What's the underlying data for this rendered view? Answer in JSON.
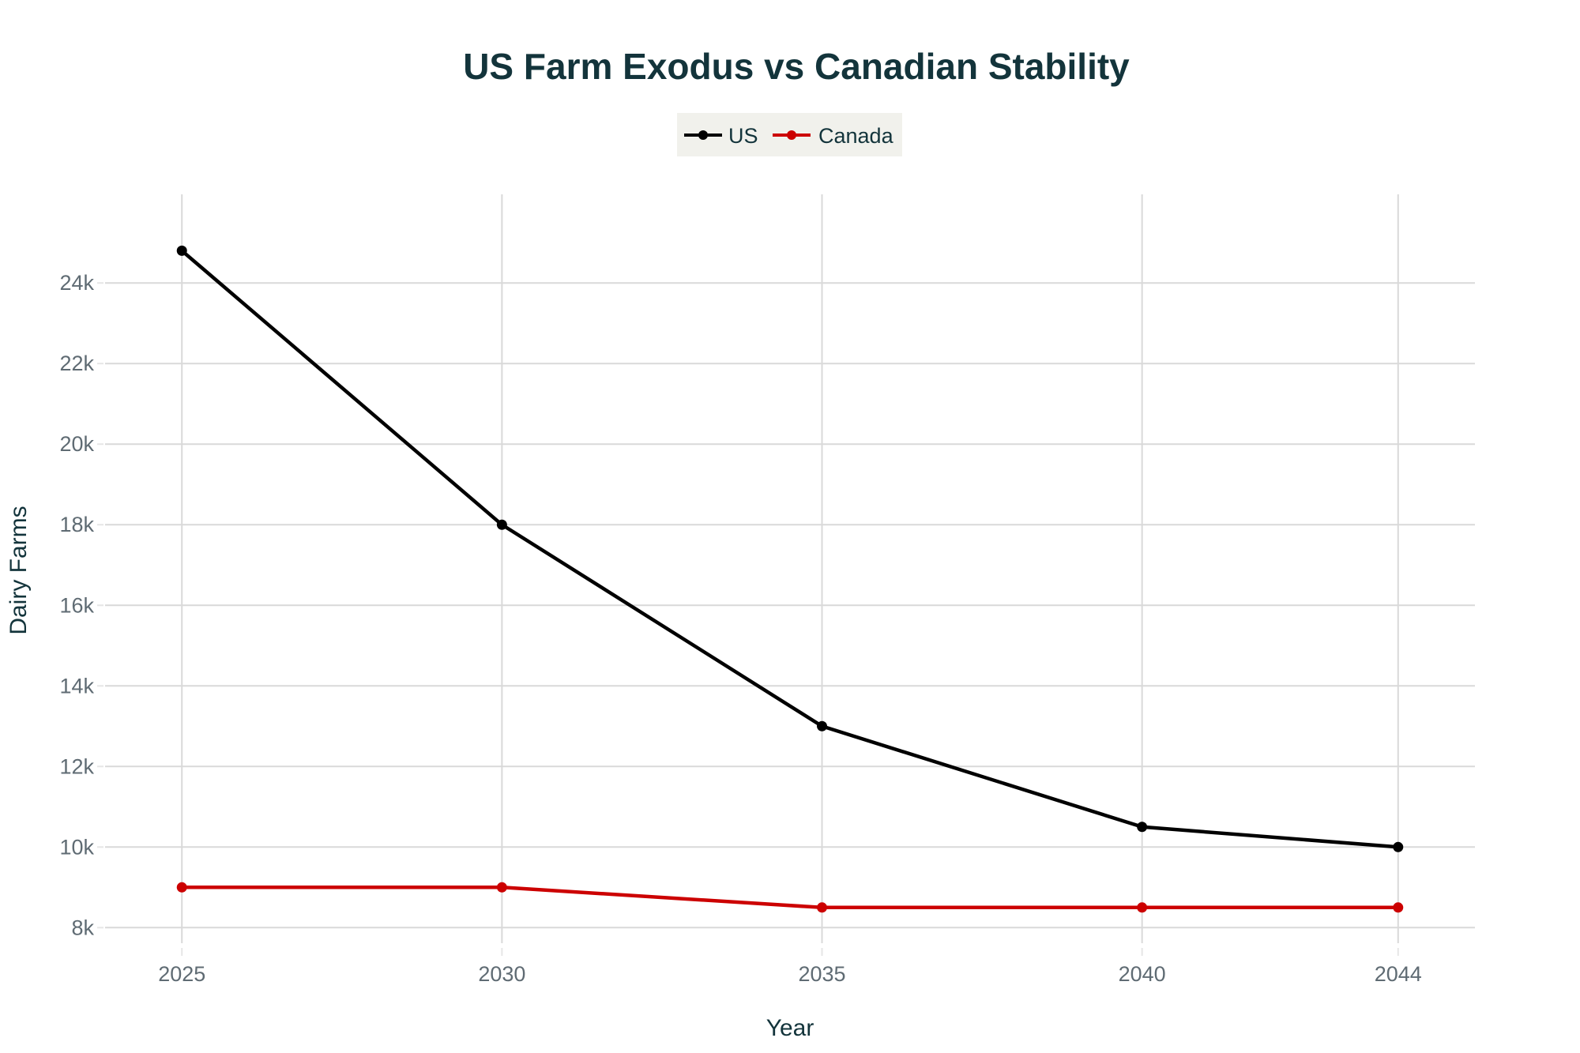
{
  "chart_data": {
    "type": "line",
    "title": "US Farm Exodus vs Canadian Stability",
    "xlabel": "Year",
    "ylabel": "Dairy Farms",
    "x": [
      2025,
      2030,
      2035,
      2040,
      2044
    ],
    "x_tick_labels": [
      "2025",
      "2030",
      "2035",
      "2040",
      "2044"
    ],
    "y_ticks": [
      8000,
      10000,
      12000,
      14000,
      16000,
      18000,
      20000,
      22000,
      24000
    ],
    "y_tick_labels": [
      "8k",
      "10k",
      "12k",
      "14k",
      "16k",
      "18k",
      "20k",
      "22k",
      "24k"
    ],
    "xlim": [
      2023.8,
      2045.2
    ],
    "ylim": [
      7300,
      26200
    ],
    "grid": true,
    "legend_position": "top-center",
    "series": [
      {
        "name": "US",
        "color": "#000000",
        "values": [
          24800,
          18000,
          13000,
          10500,
          10000
        ]
      },
      {
        "name": "Canada",
        "color": "#CC0000",
        "values": [
          9000,
          9000,
          8500,
          8500,
          8500
        ]
      }
    ]
  },
  "colors": {
    "title": "#13343B",
    "tick_label": "#5f6b73",
    "grid": "#d9d9d9",
    "legend_bg": "#f1f1ec"
  }
}
